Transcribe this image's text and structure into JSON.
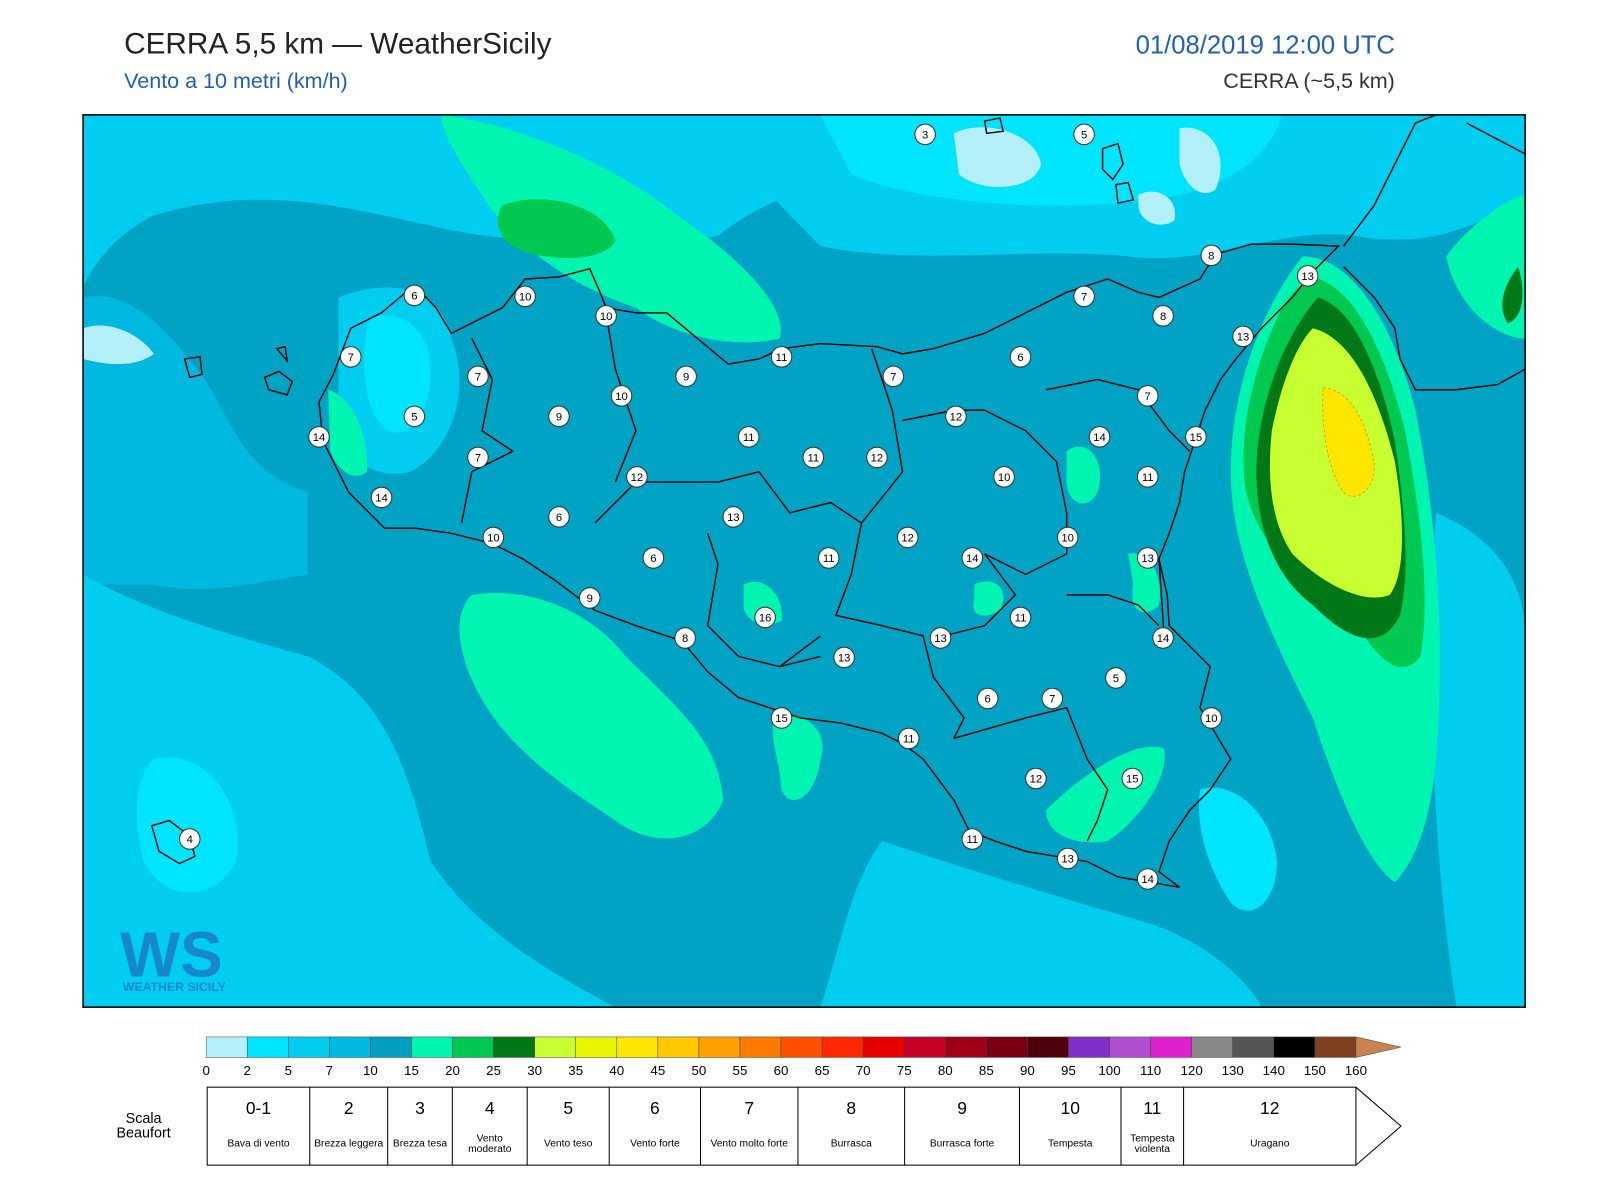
{
  "header": {
    "title": "CERRA 5,5 km — WeatherSicily",
    "subtitle": "Vento a 10 metri (km/h)",
    "datetime": "01/08/2019 12:00 UTC",
    "model": "CERRA (~5,5 km)"
  },
  "map": {
    "stations": [
      "3",
      "5",
      "8",
      "13",
      "6",
      "10",
      "10",
      "7",
      "8",
      "13",
      "7",
      "11",
      "6",
      "7",
      "9",
      "7",
      "10",
      "7",
      "5",
      "9",
      "12",
      "14",
      "11",
      "14",
      "15",
      "7",
      "11",
      "12",
      "12",
      "10",
      "11",
      "14",
      "6",
      "13",
      "10",
      "12",
      "10",
      "6",
      "11",
      "14",
      "13",
      "9",
      "16",
      "11",
      "8",
      "13",
      "14",
      "13",
      "5",
      "6",
      "7",
      "10",
      "15",
      "11",
      "12",
      "15",
      "4",
      "11",
      "13",
      "14"
    ]
  },
  "colorbar": {
    "ticks": [
      0,
      2,
      5,
      7,
      10,
      15,
      20,
      25,
      30,
      35,
      40,
      45,
      50,
      55,
      60,
      65,
      70,
      75,
      80,
      85,
      90,
      95,
      100,
      110,
      120,
      130,
      140,
      150,
      160
    ],
    "colors": [
      "#b3f0fa",
      "#00e5ff",
      "#00cdf0",
      "#00b8e0",
      "#009fbf",
      "#00f5b0",
      "#00c850",
      "#007818",
      "#c8ff30",
      "#e6f500",
      "#ffe600",
      "#ffc800",
      "#ffa000",
      "#ff7800",
      "#ff5000",
      "#ff2800",
      "#e60000",
      "#c80028",
      "#a00018",
      "#780010",
      "#500008",
      "#8030c8",
      "#b050d0",
      "#e020d0",
      "#888888",
      "#555555",
      "#000000",
      "#804020"
    ],
    "extend_color": "#c8844c"
  },
  "beaufort": {
    "title": "Scala Beaufort",
    "levels": [
      {
        "force": "0-1",
        "label": "Bava di vento"
      },
      {
        "force": "2",
        "label": "Brezza leggera"
      },
      {
        "force": "3",
        "label": "Brezza tesa"
      },
      {
        "force": "4",
        "label": "Vento moderato"
      },
      {
        "force": "5",
        "label": "Vento teso"
      },
      {
        "force": "6",
        "label": "Vento forte"
      },
      {
        "force": "7",
        "label": "Vento molto forte"
      },
      {
        "force": "8",
        "label": "Burrasca"
      },
      {
        "force": "9",
        "label": "Burrasca forte"
      },
      {
        "force": "10",
        "label": "Tempesta"
      },
      {
        "force": "11",
        "label": "Tempesta violenta"
      },
      {
        "force": "12",
        "label": "Uragano"
      }
    ]
  },
  "logo": {
    "mark": "WS",
    "text": "WEATHER SICILY"
  }
}
